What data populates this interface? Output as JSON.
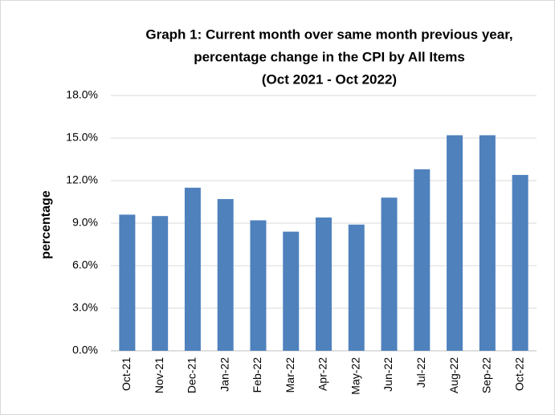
{
  "chart_data": {
    "type": "bar",
    "title": [
      "Graph 1: Current month over same month previous year,",
      "percentage change in the CPI by All Items",
      "(Oct 2021 - Oct 2022)"
    ],
    "y_label": "percentage",
    "categories": [
      "Oct-21",
      "Nov-21",
      "Dec-21",
      "Jan-22",
      "Feb-22",
      "Mar-22",
      "Apr-22",
      "May-22",
      "Jun-22",
      "Jul-22",
      "Aug-22",
      "Sep-22",
      "Oct-22"
    ],
    "values": [
      9.6,
      9.5,
      11.5,
      10.7,
      9.2,
      8.4,
      9.4,
      8.9,
      10.8,
      12.8,
      15.2,
      15.2,
      12.4
    ],
    "color": "#4f81bd",
    "ylim": [
      0,
      18
    ],
    "yticks": [
      {
        "value": 0,
        "label": "0.0%"
      },
      {
        "value": 3,
        "label": "3.0%"
      },
      {
        "value": 6,
        "label": "6.0%"
      },
      {
        "value": 9,
        "label": "9.0%"
      },
      {
        "value": 12,
        "label": "12.0%"
      },
      {
        "value": 15,
        "label": "15.0%"
      },
      {
        "value": 18,
        "label": "18.0%"
      }
    ],
    "grid": true
  }
}
